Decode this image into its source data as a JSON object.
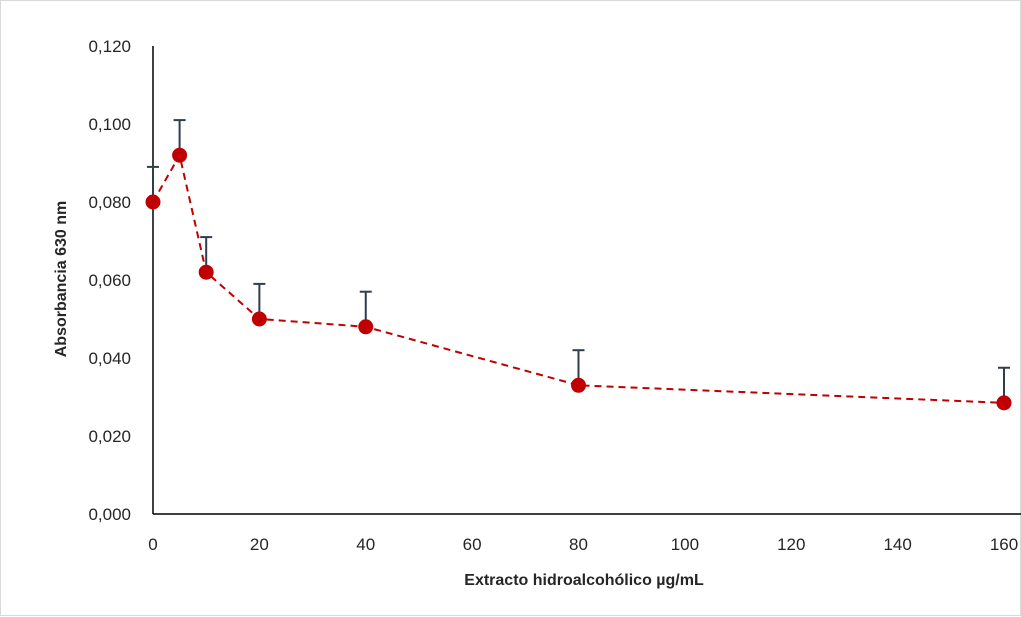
{
  "chart_data": {
    "type": "line",
    "title": "",
    "xlabel": "Extracto hidroalcohólico µg/mL",
    "ylabel": "Absorbancia  630 nm",
    "xlim": [
      0,
      160
    ],
    "ylim": [
      0,
      0.12
    ],
    "x_ticks": [
      0,
      20,
      40,
      60,
      80,
      100,
      120,
      140,
      160
    ],
    "x_tick_labels": [
      "0",
      "20",
      "40",
      "60",
      "80",
      "100",
      "120",
      "140",
      "160"
    ],
    "y_ticks": [
      0,
      0.02,
      0.04,
      0.06,
      0.08,
      0.1,
      0.12
    ],
    "y_tick_labels": [
      "0,000",
      "0,020",
      "0,040",
      "0,060",
      "0,080",
      "0,100",
      "0,120"
    ],
    "grid": false,
    "legend": "none",
    "series": [
      {
        "x": [
          0,
          5,
          10,
          20,
          40,
          80,
          160
        ],
        "y": [
          0.08,
          0.092,
          0.062,
          0.05,
          0.048,
          0.033,
          0.0285
        ],
        "error_upper": [
          0.009,
          0.009,
          0.009,
          0.009,
          0.009,
          0.009,
          0.009
        ],
        "line_style": "dashed",
        "marker": "circle",
        "color": "#c00000"
      }
    ],
    "colors": {
      "series": "#c00000",
      "error_bar": "#2f3e4e",
      "axis": "#000000",
      "text": "#262626"
    }
  }
}
